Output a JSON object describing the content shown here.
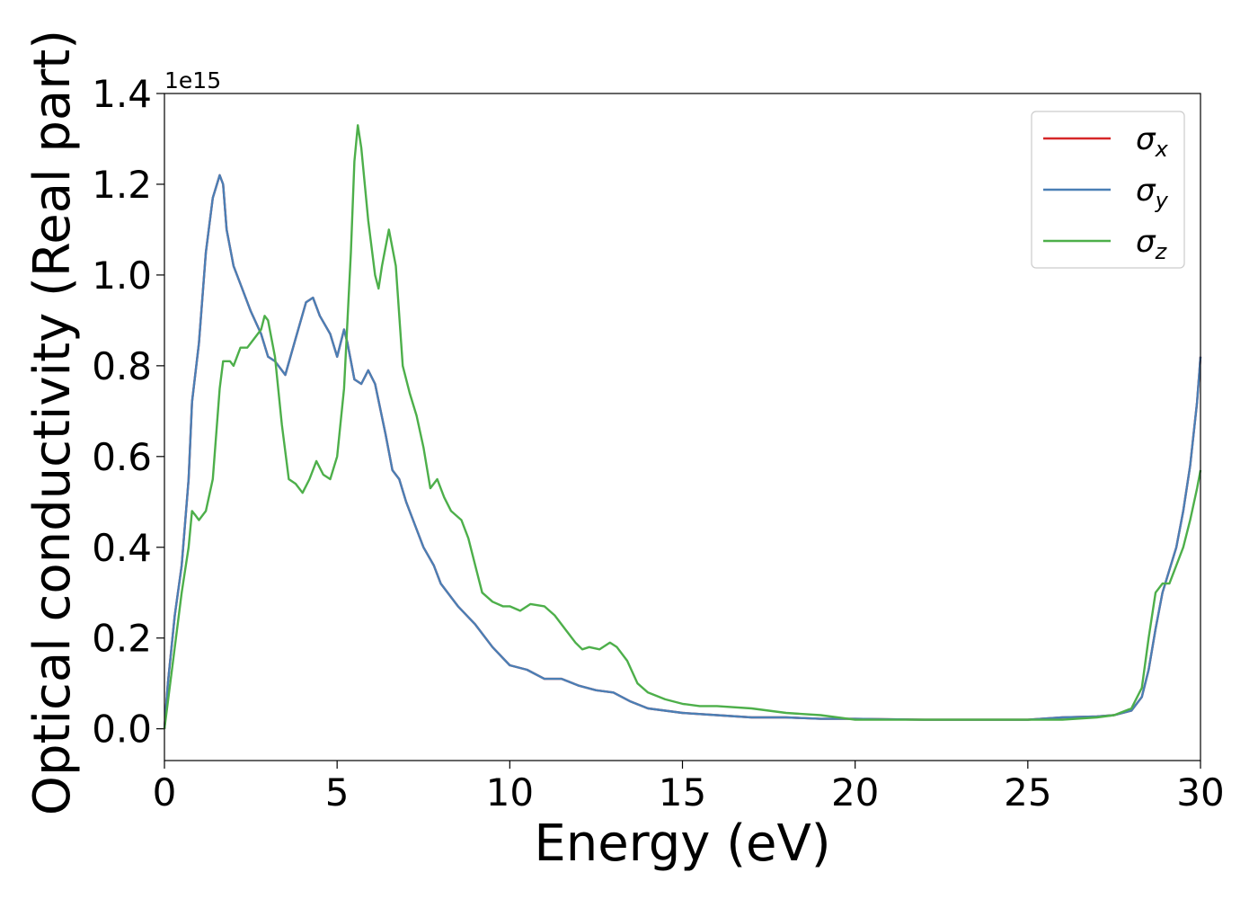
{
  "chart_data": {
    "type": "line",
    "title": "",
    "xlabel": "Energy (eV)",
    "ylabel": "Optical conductivity (Real part)",
    "y_scale_note": "1e15",
    "xlim": [
      0,
      30
    ],
    "ylim": [
      -0.07,
      1.4
    ],
    "xticks": [
      "0",
      "5",
      "10",
      "15",
      "20",
      "25",
      "30"
    ],
    "yticks": [
      "0.0",
      "0.2",
      "0.4",
      "0.6",
      "0.8",
      "1.0",
      "1.2",
      "1.4"
    ],
    "grid": false,
    "legend_position": "top-right",
    "series": [
      {
        "name": "σx",
        "legend_base": "σ",
        "legend_sub": "x",
        "color": "#d62728",
        "points": [
          [
            0,
            0
          ],
          [
            0.1,
            0.1
          ],
          [
            0.3,
            0.25
          ],
          [
            0.5,
            0.36
          ],
          [
            0.7,
            0.55
          ],
          [
            0.8,
            0.72
          ],
          [
            1.0,
            0.85
          ],
          [
            1.2,
            1.05
          ],
          [
            1.4,
            1.17
          ],
          [
            1.6,
            1.22
          ],
          [
            1.7,
            1.2
          ],
          [
            1.8,
            1.1
          ],
          [
            2.0,
            1.02
          ],
          [
            2.2,
            0.98
          ],
          [
            2.5,
            0.92
          ],
          [
            2.8,
            0.87
          ],
          [
            3.0,
            0.82
          ],
          [
            3.2,
            0.81
          ],
          [
            3.5,
            0.78
          ],
          [
            3.8,
            0.86
          ],
          [
            4.1,
            0.94
          ],
          [
            4.3,
            0.95
          ],
          [
            4.5,
            0.91
          ],
          [
            4.8,
            0.87
          ],
          [
            5.0,
            0.82
          ],
          [
            5.2,
            0.88
          ],
          [
            5.3,
            0.85
          ],
          [
            5.5,
            0.77
          ],
          [
            5.7,
            0.76
          ],
          [
            5.9,
            0.79
          ],
          [
            6.1,
            0.76
          ],
          [
            6.4,
            0.65
          ],
          [
            6.6,
            0.57
          ],
          [
            6.8,
            0.55
          ],
          [
            7.0,
            0.5
          ],
          [
            7.2,
            0.46
          ],
          [
            7.5,
            0.4
          ],
          [
            7.8,
            0.36
          ],
          [
            8.0,
            0.32
          ],
          [
            8.5,
            0.27
          ],
          [
            9.0,
            0.23
          ],
          [
            9.5,
            0.18
          ],
          [
            10.0,
            0.14
          ],
          [
            10.5,
            0.13
          ],
          [
            11.0,
            0.11
          ],
          [
            11.5,
            0.11
          ],
          [
            12.0,
            0.095
          ],
          [
            12.5,
            0.085
          ],
          [
            13.0,
            0.08
          ],
          [
            13.5,
            0.06
          ],
          [
            14.0,
            0.045
          ],
          [
            14.5,
            0.04
          ],
          [
            15.0,
            0.035
          ],
          [
            16.0,
            0.03
          ],
          [
            17.0,
            0.025
          ],
          [
            18.0,
            0.025
          ],
          [
            19.0,
            0.022
          ],
          [
            20.0,
            0.022
          ],
          [
            22.0,
            0.02
          ],
          [
            24.0,
            0.02
          ],
          [
            25.0,
            0.02
          ],
          [
            26.0,
            0.025
          ],
          [
            27.0,
            0.027
          ],
          [
            27.5,
            0.03
          ],
          [
            28.0,
            0.04
          ],
          [
            28.3,
            0.07
          ],
          [
            28.5,
            0.13
          ],
          [
            28.7,
            0.22
          ],
          [
            28.9,
            0.3
          ],
          [
            29.1,
            0.35
          ],
          [
            29.3,
            0.4
          ],
          [
            29.5,
            0.48
          ],
          [
            29.7,
            0.58
          ],
          [
            29.9,
            0.72
          ],
          [
            30.0,
            0.82
          ]
        ]
      },
      {
        "name": "σy",
        "legend_base": "σ",
        "legend_sub": "y",
        "color": "#4a7fb5",
        "points": [
          [
            0,
            0
          ],
          [
            0.1,
            0.1
          ],
          [
            0.3,
            0.25
          ],
          [
            0.5,
            0.36
          ],
          [
            0.7,
            0.55
          ],
          [
            0.8,
            0.72
          ],
          [
            1.0,
            0.85
          ],
          [
            1.2,
            1.05
          ],
          [
            1.4,
            1.17
          ],
          [
            1.6,
            1.22
          ],
          [
            1.7,
            1.2
          ],
          [
            1.8,
            1.1
          ],
          [
            2.0,
            1.02
          ],
          [
            2.2,
            0.98
          ],
          [
            2.5,
            0.92
          ],
          [
            2.8,
            0.87
          ],
          [
            3.0,
            0.82
          ],
          [
            3.2,
            0.81
          ],
          [
            3.5,
            0.78
          ],
          [
            3.8,
            0.86
          ],
          [
            4.1,
            0.94
          ],
          [
            4.3,
            0.95
          ],
          [
            4.5,
            0.91
          ],
          [
            4.8,
            0.87
          ],
          [
            5.0,
            0.82
          ],
          [
            5.2,
            0.88
          ],
          [
            5.3,
            0.85
          ],
          [
            5.5,
            0.77
          ],
          [
            5.7,
            0.76
          ],
          [
            5.9,
            0.79
          ],
          [
            6.1,
            0.76
          ],
          [
            6.4,
            0.65
          ],
          [
            6.6,
            0.57
          ],
          [
            6.8,
            0.55
          ],
          [
            7.0,
            0.5
          ],
          [
            7.2,
            0.46
          ],
          [
            7.5,
            0.4
          ],
          [
            7.8,
            0.36
          ],
          [
            8.0,
            0.32
          ],
          [
            8.5,
            0.27
          ],
          [
            9.0,
            0.23
          ],
          [
            9.5,
            0.18
          ],
          [
            10.0,
            0.14
          ],
          [
            10.5,
            0.13
          ],
          [
            11.0,
            0.11
          ],
          [
            11.5,
            0.11
          ],
          [
            12.0,
            0.095
          ],
          [
            12.5,
            0.085
          ],
          [
            13.0,
            0.08
          ],
          [
            13.5,
            0.06
          ],
          [
            14.0,
            0.045
          ],
          [
            14.5,
            0.04
          ],
          [
            15.0,
            0.035
          ],
          [
            16.0,
            0.03
          ],
          [
            17.0,
            0.025
          ],
          [
            18.0,
            0.025
          ],
          [
            19.0,
            0.022
          ],
          [
            20.0,
            0.022
          ],
          [
            22.0,
            0.02
          ],
          [
            24.0,
            0.02
          ],
          [
            25.0,
            0.02
          ],
          [
            26.0,
            0.025
          ],
          [
            27.0,
            0.027
          ],
          [
            27.5,
            0.03
          ],
          [
            28.0,
            0.04
          ],
          [
            28.3,
            0.07
          ],
          [
            28.5,
            0.13
          ],
          [
            28.7,
            0.22
          ],
          [
            28.9,
            0.3
          ],
          [
            29.1,
            0.35
          ],
          [
            29.3,
            0.4
          ],
          [
            29.5,
            0.48
          ],
          [
            29.7,
            0.58
          ],
          [
            29.9,
            0.72
          ],
          [
            30.0,
            0.82
          ]
        ]
      },
      {
        "name": "σz",
        "legend_base": "σ",
        "legend_sub": "z",
        "color": "#4daf4a",
        "points": [
          [
            0,
            0
          ],
          [
            0.2,
            0.12
          ],
          [
            0.5,
            0.3
          ],
          [
            0.7,
            0.4
          ],
          [
            0.8,
            0.48
          ],
          [
            0.9,
            0.47
          ],
          [
            1.0,
            0.46
          ],
          [
            1.2,
            0.48
          ],
          [
            1.4,
            0.55
          ],
          [
            1.6,
            0.75
          ],
          [
            1.7,
            0.81
          ],
          [
            1.9,
            0.81
          ],
          [
            2.0,
            0.8
          ],
          [
            2.2,
            0.84
          ],
          [
            2.4,
            0.84
          ],
          [
            2.6,
            0.86
          ],
          [
            2.8,
            0.88
          ],
          [
            2.9,
            0.91
          ],
          [
            3.0,
            0.9
          ],
          [
            3.2,
            0.82
          ],
          [
            3.4,
            0.67
          ],
          [
            3.6,
            0.55
          ],
          [
            3.8,
            0.54
          ],
          [
            4.0,
            0.52
          ],
          [
            4.2,
            0.55
          ],
          [
            4.4,
            0.59
          ],
          [
            4.6,
            0.56
          ],
          [
            4.8,
            0.55
          ],
          [
            5.0,
            0.6
          ],
          [
            5.2,
            0.75
          ],
          [
            5.4,
            1.05
          ],
          [
            5.5,
            1.25
          ],
          [
            5.6,
            1.33
          ],
          [
            5.7,
            1.28
          ],
          [
            5.9,
            1.12
          ],
          [
            6.1,
            1.0
          ],
          [
            6.2,
            0.97
          ],
          [
            6.3,
            1.02
          ],
          [
            6.5,
            1.1
          ],
          [
            6.7,
            1.02
          ],
          [
            6.9,
            0.8
          ],
          [
            7.1,
            0.74
          ],
          [
            7.3,
            0.69
          ],
          [
            7.5,
            0.62
          ],
          [
            7.7,
            0.53
          ],
          [
            7.9,
            0.55
          ],
          [
            8.1,
            0.51
          ],
          [
            8.3,
            0.48
          ],
          [
            8.6,
            0.46
          ],
          [
            8.8,
            0.42
          ],
          [
            9.0,
            0.36
          ],
          [
            9.2,
            0.3
          ],
          [
            9.5,
            0.28
          ],
          [
            9.8,
            0.27
          ],
          [
            10.0,
            0.27
          ],
          [
            10.3,
            0.26
          ],
          [
            10.6,
            0.275
          ],
          [
            11.0,
            0.27
          ],
          [
            11.3,
            0.25
          ],
          [
            11.6,
            0.22
          ],
          [
            11.9,
            0.19
          ],
          [
            12.1,
            0.175
          ],
          [
            12.3,
            0.18
          ],
          [
            12.6,
            0.175
          ],
          [
            12.9,
            0.19
          ],
          [
            13.1,
            0.18
          ],
          [
            13.4,
            0.15
          ],
          [
            13.7,
            0.1
          ],
          [
            14.0,
            0.08
          ],
          [
            14.5,
            0.065
          ],
          [
            15.0,
            0.055
          ],
          [
            15.5,
            0.05
          ],
          [
            16.0,
            0.05
          ],
          [
            17.0,
            0.045
          ],
          [
            18.0,
            0.035
          ],
          [
            19.0,
            0.03
          ],
          [
            20.0,
            0.02
          ],
          [
            22.0,
            0.02
          ],
          [
            24.0,
            0.02
          ],
          [
            25.0,
            0.02
          ],
          [
            26.0,
            0.02
          ],
          [
            27.0,
            0.025
          ],
          [
            27.5,
            0.03
          ],
          [
            28.0,
            0.045
          ],
          [
            28.3,
            0.09
          ],
          [
            28.5,
            0.2
          ],
          [
            28.7,
            0.3
          ],
          [
            28.9,
            0.32
          ],
          [
            29.1,
            0.32
          ],
          [
            29.3,
            0.36
          ],
          [
            29.5,
            0.4
          ],
          [
            29.7,
            0.46
          ],
          [
            29.9,
            0.53
          ],
          [
            30.0,
            0.57
          ]
        ]
      }
    ]
  }
}
